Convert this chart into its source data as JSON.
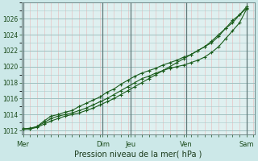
{
  "xlabel": "Pression niveau de la mer( hPa )",
  "background_color": "#cce8e8",
  "plot_bg": "#dff0f0",
  "line_color": "#1a5c1a",
  "ylim": [
    1011.5,
    1028.0
  ],
  "yticks": [
    1012,
    1014,
    1016,
    1018,
    1020,
    1022,
    1024,
    1026
  ],
  "day_labels": [
    "Mer",
    "",
    "Dim",
    "Jeu",
    "",
    "Ven",
    "",
    "Sam"
  ],
  "day_positions": [
    0,
    1,
    2.85,
    3.85,
    5.1,
    5.85,
    7.0,
    8.0
  ],
  "vline_positions": [
    0,
    2.85,
    3.85,
    5.85,
    8.0
  ],
  "xlim": [
    -0.05,
    8.3
  ],
  "series1_x": [
    0,
    0.25,
    0.5,
    0.75,
    1.0,
    1.25,
    1.5,
    1.75,
    2.0,
    2.25,
    2.5,
    2.75,
    3.0,
    3.25,
    3.5,
    3.75,
    4.0,
    4.25,
    4.5,
    4.75,
    5.0,
    5.25,
    5.5,
    5.75,
    6.0,
    6.25,
    6.5,
    6.75,
    7.0,
    7.25,
    7.5,
    7.75,
    8.0
  ],
  "series1_y": [
    1012.2,
    1012.2,
    1012.5,
    1013.0,
    1013.5,
    1013.8,
    1014.0,
    1014.2,
    1014.5,
    1014.8,
    1015.2,
    1015.6,
    1016.0,
    1016.5,
    1017.0,
    1017.5,
    1018.0,
    1018.5,
    1018.8,
    1019.2,
    1019.5,
    1019.8,
    1020.0,
    1020.2,
    1020.5,
    1020.8,
    1021.2,
    1021.8,
    1022.5,
    1023.5,
    1024.5,
    1025.5,
    1027.2
  ],
  "series2_x": [
    0,
    0.25,
    0.5,
    0.75,
    1.0,
    1.25,
    1.5,
    1.75,
    2.0,
    2.25,
    2.5,
    2.75,
    3.0,
    3.25,
    3.5,
    3.75,
    4.0,
    4.25,
    4.5,
    4.75,
    5.0,
    5.25,
    5.5,
    5.75,
    6.0,
    6.25,
    6.5,
    6.75,
    7.0,
    7.25,
    7.5,
    7.75,
    8.0
  ],
  "series2_y": [
    1012.2,
    1012.3,
    1012.5,
    1013.2,
    1013.8,
    1014.0,
    1014.3,
    1014.5,
    1015.0,
    1015.4,
    1015.8,
    1016.2,
    1016.8,
    1017.2,
    1017.8,
    1018.3,
    1018.8,
    1019.2,
    1019.5,
    1019.8,
    1020.2,
    1020.5,
    1020.8,
    1021.2,
    1021.5,
    1022.0,
    1022.5,
    1023.2,
    1024.0,
    1024.8,
    1025.5,
    1026.5,
    1027.3
  ],
  "series3_x": [
    0,
    0.25,
    0.5,
    0.75,
    1.0,
    1.25,
    1.5,
    1.75,
    2.0,
    2.25,
    2.5,
    2.75,
    3.0,
    3.25,
    3.5,
    3.75,
    4.0,
    4.25,
    4.5,
    4.75,
    5.0,
    5.25,
    5.5,
    5.75,
    6.0,
    6.25,
    6.5,
    6.75,
    7.0,
    7.25,
    7.5,
    7.75,
    8.0
  ],
  "series3_y": [
    1012.2,
    1012.2,
    1012.4,
    1012.8,
    1013.2,
    1013.5,
    1013.8,
    1014.0,
    1014.2,
    1014.5,
    1014.8,
    1015.2,
    1015.6,
    1016.0,
    1016.5,
    1017.0,
    1017.5,
    1018.0,
    1018.5,
    1019.0,
    1019.5,
    1020.0,
    1020.5,
    1021.0,
    1021.5,
    1022.0,
    1022.5,
    1023.0,
    1023.8,
    1024.8,
    1025.8,
    1026.5,
    1027.5
  ]
}
